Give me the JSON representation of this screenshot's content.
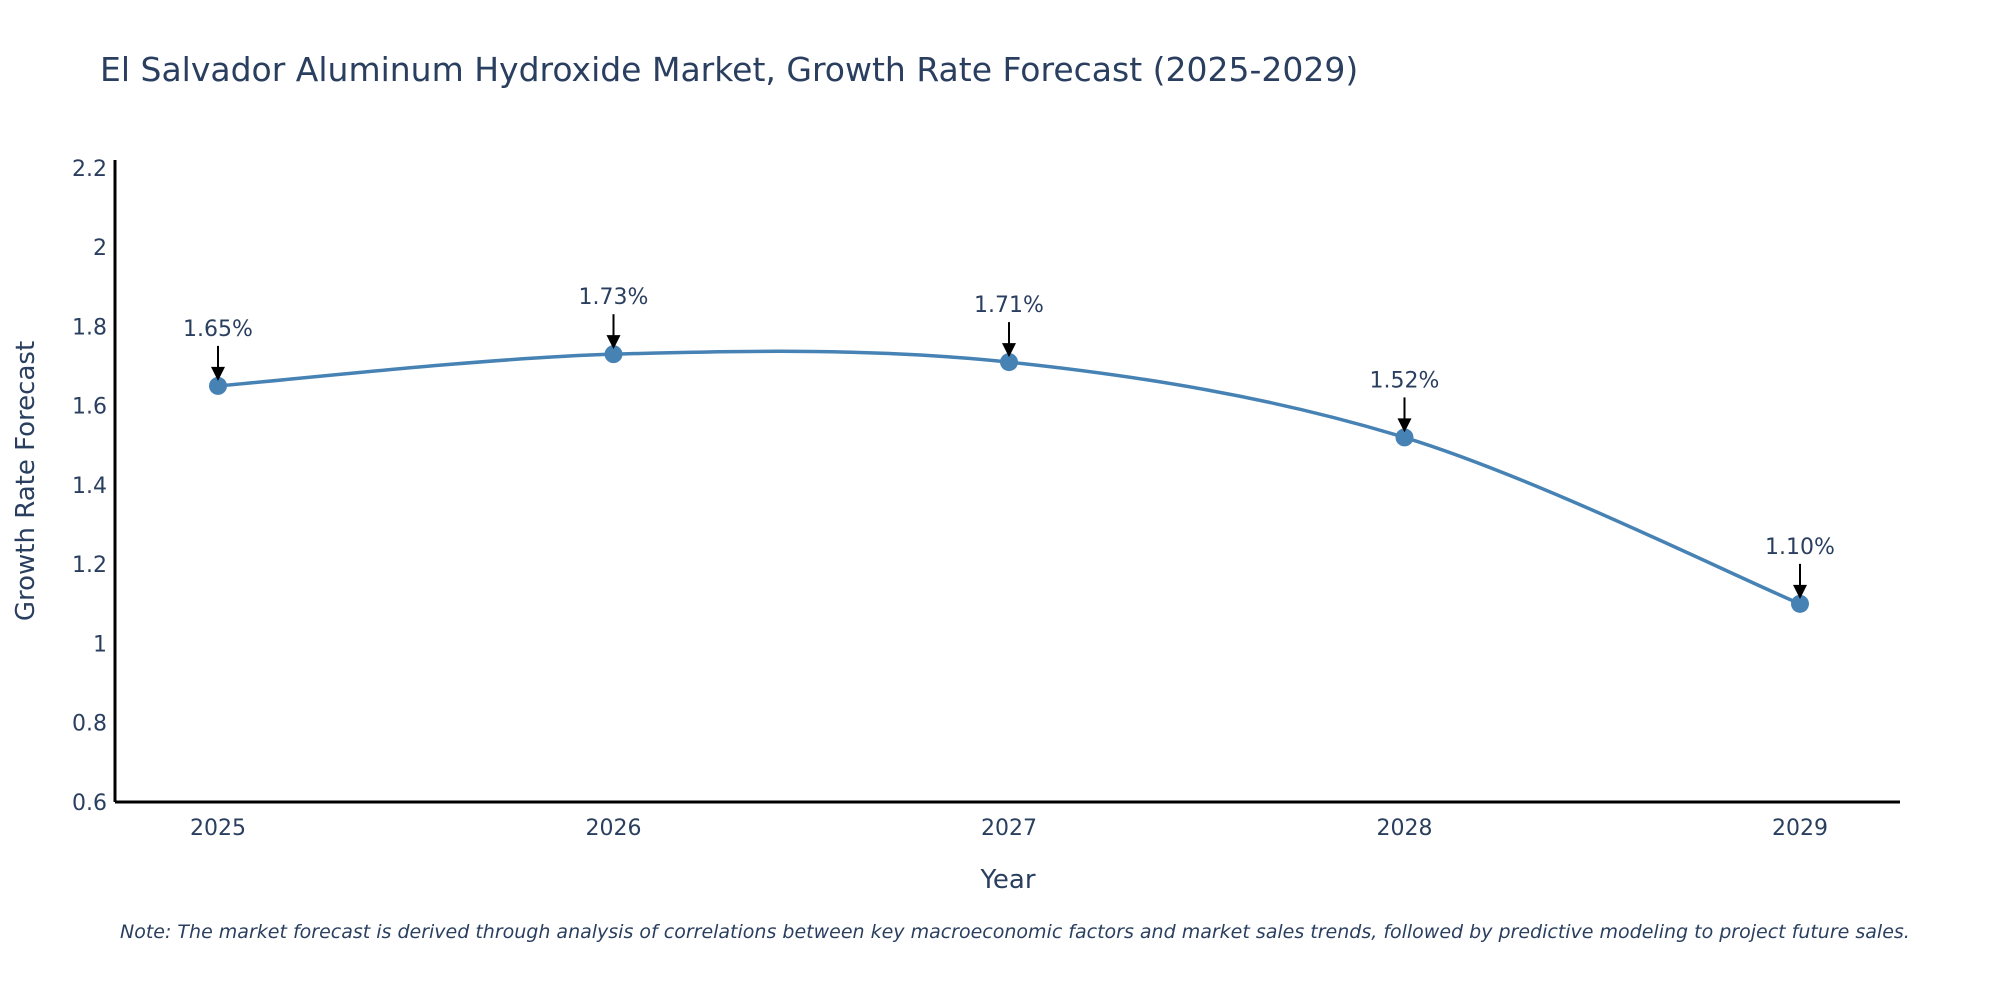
{
  "chart_data": {
    "type": "line",
    "title": "El Salvador Aluminum Hydroxide Market, Growth Rate Forecast (2025-2029)",
    "xlabel": "Year",
    "ylabel": "Growth Rate Forecast",
    "categories": [
      "2025",
      "2026",
      "2027",
      "2028",
      "2029"
    ],
    "series": [
      {
        "name": "Growth Rate Forecast",
        "values": [
          1.65,
          1.73,
          1.71,
          1.52,
          1.1
        ],
        "labels": [
          "1.65%",
          "1.73%",
          "1.71%",
          "1.52%",
          "1.10%"
        ]
      }
    ],
    "ylim": [
      0.6,
      2.22
    ],
    "yticks": [
      0.6,
      0.8,
      1,
      1.2,
      1.4,
      1.6,
      1.8,
      2,
      2.2
    ],
    "ytick_labels": [
      "0.6",
      "0.8",
      "1",
      "1.2",
      "1.4",
      "1.6",
      "1.8",
      "2",
      "2.2"
    ],
    "grid": false,
    "line_shape": "spline",
    "colors": {
      "line": "#4682b4",
      "marker": "#4682b4",
      "arrow": "#000000",
      "axis": "#000000",
      "text": "#2a3f5f"
    },
    "note": "Note: The market forecast is derived through analysis of correlations between key macroeconomic factors and market sales trends, followed by predictive modeling to project future sales."
  }
}
